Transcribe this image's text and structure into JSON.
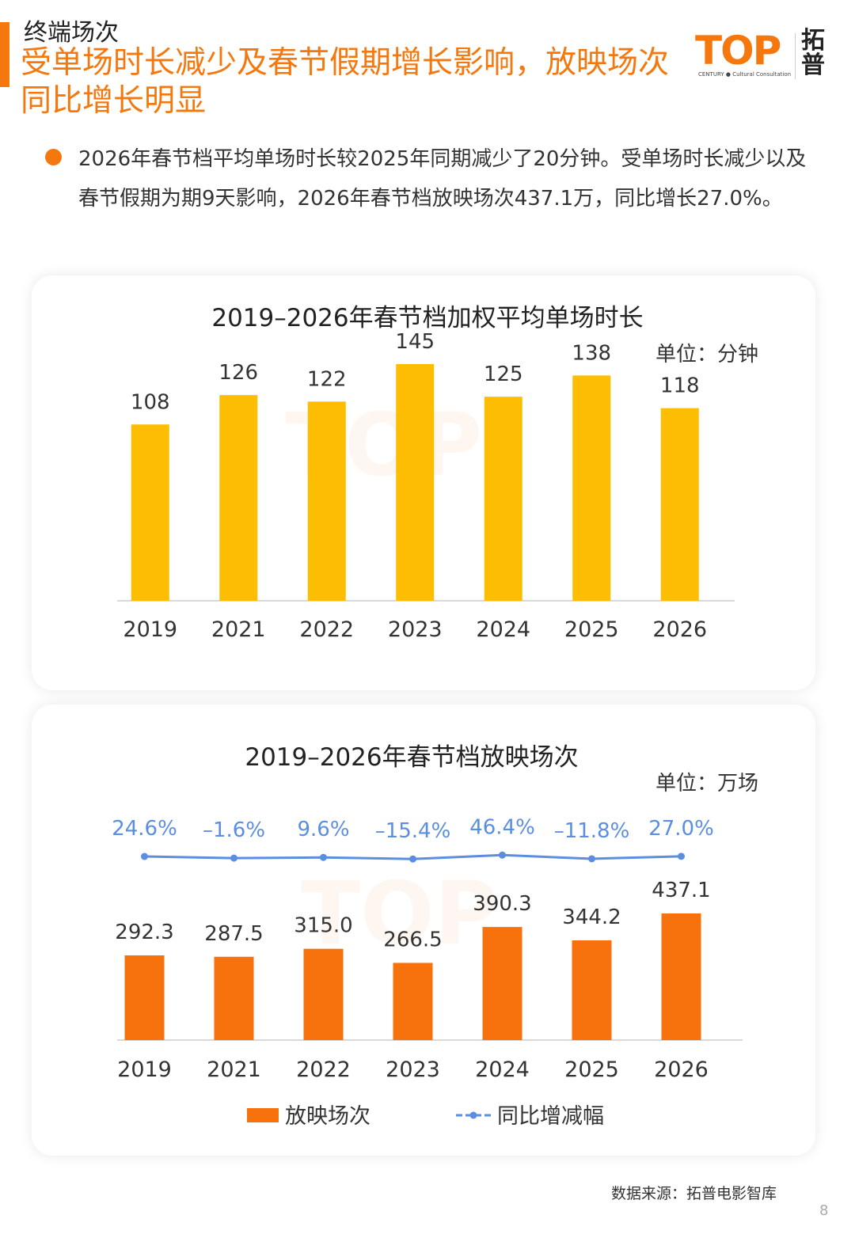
{
  "header": {
    "section": "终端场次",
    "headline_line1": "受单场时长减少及春节假期增长影响，放映场次",
    "headline_line2": "同比增长明显"
  },
  "logo": {
    "mark": "TOP",
    "sub": "CENTURY ● Cultural Consultation",
    "cn_line1": "拓",
    "cn_line2": "普"
  },
  "bullet": "2026年春节档平均单场时长较2025年同期减少了20分钟。受单场时长减少以及春节假期为期9天影响，2026年春节档放映场次437.1万，同比增长27.0%。",
  "colors": {
    "accent": "#f5780f",
    "bar_yellow": "#fcbd02",
    "bar_orange": "#f7720d",
    "line_blue": "#5b8ee0"
  },
  "chart_data": [
    {
      "type": "bar",
      "title": "2019–2026年春节档加权平均单场时长",
      "unit": "单位：分钟",
      "categories": [
        "2019",
        "2021",
        "2022",
        "2023",
        "2024",
        "2025",
        "2026"
      ],
      "values": [
        108,
        126,
        122,
        145,
        125,
        138,
        118
      ],
      "value_labels": [
        "108",
        "126",
        "122",
        "145",
        "125",
        "138",
        "118"
      ],
      "ylim": [
        0,
        160
      ],
      "grid": false,
      "legend": "none"
    },
    {
      "type": "bar",
      "title": "2019–2026年春节档放映场次",
      "unit": "单位：万场",
      "categories": [
        "2019",
        "2021",
        "2022",
        "2023",
        "2024",
        "2025",
        "2026"
      ],
      "series": [
        {
          "name": "放映场次",
          "type": "bar",
          "values": [
            292.3,
            287.5,
            315.0,
            266.5,
            390.3,
            344.2,
            437.1
          ],
          "value_labels": [
            "292.3",
            "287.5",
            "315.0",
            "266.5",
            "390.3",
            "344.2",
            "437.1"
          ]
        },
        {
          "name": "同比增减幅",
          "type": "line",
          "values": [
            24.6,
            -1.6,
            9.6,
            -15.4,
            46.4,
            -11.8,
            27.0
          ],
          "value_labels": [
            "24.6%",
            "–1.6%",
            "9.6%",
            "–15.4%",
            "46.4%",
            "–11.8%",
            "27.0%"
          ]
        }
      ],
      "ylim": [
        0,
        480
      ],
      "grid": false,
      "legend": "bottom"
    }
  ],
  "footer": {
    "source": "数据来源：拓普电影智库",
    "page": "8"
  }
}
